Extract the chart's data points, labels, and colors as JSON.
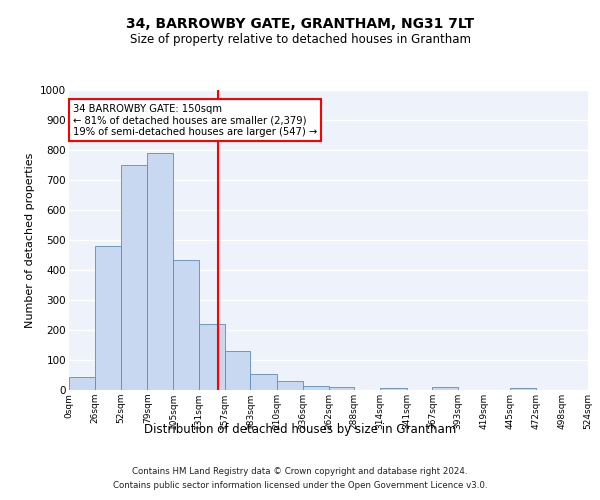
{
  "title": "34, BARROWBY GATE, GRANTHAM, NG31 7LT",
  "subtitle": "Size of property relative to detached houses in Grantham",
  "xlabel": "Distribution of detached houses by size in Grantham",
  "ylabel": "Number of detached properties",
  "bar_edges": [
    0,
    26,
    52,
    79,
    105,
    131,
    157,
    183,
    210,
    236,
    262,
    288,
    314,
    341,
    367,
    393,
    419,
    445,
    472,
    498,
    524
  ],
  "bar_heights": [
    45,
    480,
    750,
    790,
    435,
    220,
    130,
    52,
    30,
    15,
    10,
    0,
    8,
    0,
    10,
    0,
    0,
    8,
    0,
    0
  ],
  "tick_labels": [
    "0sqm",
    "26sqm",
    "52sqm",
    "79sqm",
    "105sqm",
    "131sqm",
    "157sqm",
    "183sqm",
    "210sqm",
    "236sqm",
    "262sqm",
    "288sqm",
    "314sqm",
    "341sqm",
    "367sqm",
    "393sqm",
    "419sqm",
    "445sqm",
    "472sqm",
    "498sqm",
    "524sqm"
  ],
  "bar_color": "#c8d8f0",
  "bar_edge_color": "#5b8db8",
  "vline_x": 150,
  "vline_color": "red",
  "annotation_line1": "34 BARROWBY GATE: 150sqm",
  "annotation_line2": "← 81% of detached houses are smaller (2,379)",
  "annotation_line3": "19% of semi-detached houses are larger (547) →",
  "annotation_box_color": "white",
  "annotation_box_edge": "red",
  "ylim": [
    0,
    1000
  ],
  "yticks": [
    0,
    100,
    200,
    300,
    400,
    500,
    600,
    700,
    800,
    900,
    1000
  ],
  "bg_color": "#eef2fb",
  "grid_color": "white",
  "footer_line1": "Contains HM Land Registry data © Crown copyright and database right 2024.",
  "footer_line2": "Contains public sector information licensed under the Open Government Licence v3.0."
}
